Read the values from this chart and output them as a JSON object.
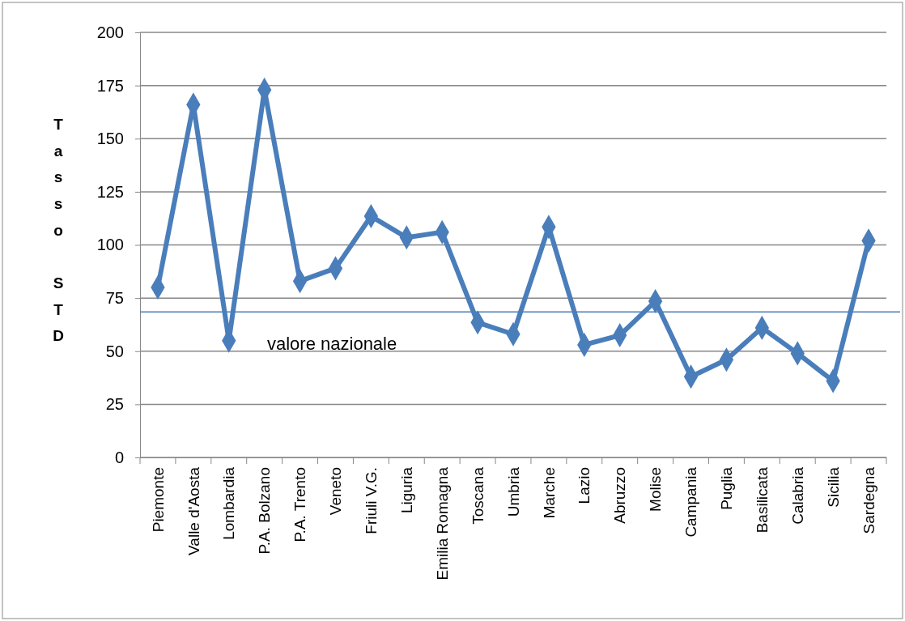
{
  "chart_data": {
    "type": "line",
    "ylabel": "Tasso STD",
    "categories": [
      "Piemonte",
      "Valle d'Aosta",
      "Lombardia",
      "P.A. Bolzano",
      "P.A. Trento",
      "Veneto",
      "Friuli V.G.",
      "Liguria",
      "Emilia Romagna",
      "Toscana",
      "Umbria",
      "Marche",
      "Lazio",
      "Abruzzo",
      "Molise",
      "Campania",
      "Puglia",
      "Basilicata",
      "Calabria",
      "Sicilia",
      "Sardegna"
    ],
    "series": [
      {
        "color": "#4a7ebb",
        "values": [
          80,
          166,
          55,
          173,
          83,
          89,
          113.5,
          103.5,
          106,
          63.5,
          58,
          108.5,
          53,
          57.5,
          73.5,
          38,
          46,
          61,
          49,
          36,
          102
        ]
      }
    ],
    "ylim": [
      0,
      200
    ],
    "yticks": [
      0,
      25,
      50,
      75,
      100,
      125,
      150,
      175,
      200
    ],
    "grid": "y",
    "marker": "diamond",
    "line_style": "solid",
    "ref_lines": [
      {
        "axis": "y",
        "value": 68.5,
        "label": "valore nazionale",
        "color": "#4a7ebb"
      }
    ]
  }
}
